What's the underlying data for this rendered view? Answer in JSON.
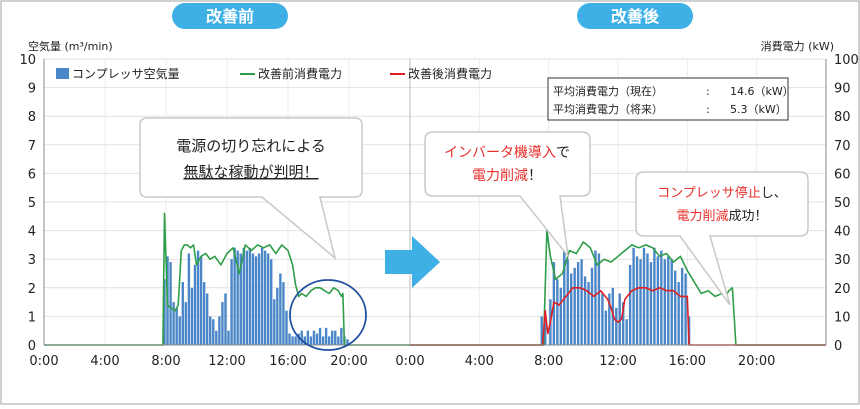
{
  "chart_data": {
    "type": "bar",
    "phase_labels": [
      "改善前",
      "改善後"
    ],
    "y_left_label": "空気量 (m³/min)",
    "y_right_label": "消費電力 (kW)",
    "y_left_range": [
      0,
      10
    ],
    "y_right_range": [
      0,
      100
    ],
    "y_left_ticks": [
      "0",
      "1",
      "2",
      "3",
      "4",
      "5",
      "6",
      "7",
      "8",
      "9",
      "10"
    ],
    "y_right_ticks": [
      "0",
      "10",
      "20",
      "30",
      "40",
      "50",
      "60",
      "70",
      "80",
      "90",
      "100"
    ],
    "x_tick_labels": [
      "0:00",
      "4:00",
      "8:00",
      "12:00",
      "16:00",
      "20:00",
      "0:00",
      "4:00",
      "8:00",
      "12:00",
      "16:00",
      "20:00"
    ],
    "legend": [
      {
        "name": "コンプレッサ空気量",
        "color": "#4a86c8",
        "kind": "bar"
      },
      {
        "name": "改善前消費電力",
        "color": "#2e9e48",
        "kind": "line"
      },
      {
        "name": "改善後消費電力",
        "color": "#e02020",
        "kind": "line"
      }
    ],
    "info_box": {
      "row1_label": "平均消費電力（現在）",
      "row1_sep": ":",
      "row1_value": "14.6（kW）",
      "row2_label": "平均消費電力（将来）",
      "row2_sep": ":",
      "row2_value": "5.3（kW）"
    },
    "callouts": {
      "before_line1": "電源の切り忘れによる",
      "before_line2_a": "無駄な稼動",
      "before_line2_b": "が",
      "before_line2_c": "判明",
      "before_line2_d": "！",
      "after1_line1_a": "インバータ機導入",
      "after1_line1_b": "で",
      "after1_line2_a": "電力削減",
      "after1_line2_b": "！",
      "after2_line1_a": "コンプレッサ停止",
      "after2_line1_b": "し、",
      "after2_line2_a": "電力削減",
      "after2_line2_b": "成功！"
    },
    "colors": {
      "bar": "#4a86c8",
      "before_line": "#2e9e48",
      "after_line": "#e02020",
      "phase_tab": "#3fb0e6",
      "arrow": "#3fb0e6",
      "circle": "#1f4fa0",
      "callout_red": "#e8302c"
    },
    "before": {
      "air_hours": [
        7.9,
        8.1,
        8.3,
        8.5,
        8.7,
        8.9,
        9.1,
        9.3,
        9.5,
        9.7,
        9.9,
        10.1,
        10.3,
        10.5,
        10.7,
        10.9,
        11.1,
        11.3,
        11.5,
        11.7,
        11.9,
        12.1,
        12.3,
        12.5,
        12.7,
        12.9,
        13.1,
        13.3,
        13.5,
        13.7,
        13.9,
        14.1,
        14.3,
        14.5,
        14.7,
        14.9,
        15.1,
        15.3,
        15.5,
        15.7,
        15.9,
        16.1,
        16.3,
        16.5,
        16.7,
        16.9,
        17.1,
        17.3,
        17.5,
        17.7,
        17.9,
        18.1,
        18.3,
        18.5,
        18.7,
        18.9,
        19.1,
        19.3,
        19.5,
        19.7,
        19.9
      ],
      "air_values": [
        2.3,
        3.1,
        2.9,
        1.5,
        1.3,
        1.0,
        2.2,
        1.5,
        3.2,
        2.0,
        2.8,
        3.3,
        3.1,
        2.2,
        1.8,
        1.0,
        0.9,
        0.5,
        1.0,
        1.5,
        1.8,
        0.5,
        3.0,
        3.4,
        3.3,
        3.2,
        3.4,
        3.3,
        3.4,
        3.2,
        3.1,
        3.2,
        3.4,
        3.3,
        3.2,
        3.0,
        1.6,
        2.0,
        2.5,
        2.2,
        1.2,
        0.4,
        0.3,
        0.3,
        0.4,
        0.5,
        0.3,
        0.5,
        0.3,
        0.5,
        0.4,
        0.6,
        0.3,
        0.6,
        0.3,
        0.5,
        0.5,
        0.3,
        0.6,
        0.3,
        0.2
      ],
      "power_hours": [
        0,
        7.8,
        7.9,
        8.0,
        8.1,
        8.3,
        8.6,
        8.8,
        9.0,
        9.2,
        9.4,
        9.6,
        9.8,
        10.0,
        10.3,
        10.6,
        10.9,
        11.2,
        11.6,
        12.0,
        12.4,
        12.8,
        13.2,
        13.6,
        14.0,
        14.4,
        14.8,
        15.2,
        15.6,
        16.0,
        16.3,
        16.5,
        16.7,
        16.9,
        17.2,
        17.5,
        17.8,
        18.1,
        18.4,
        18.7,
        19.0,
        19.3,
        19.5,
        19.6,
        19.7,
        20.0,
        24.0
      ],
      "power_values": [
        0,
        0,
        46,
        30,
        14,
        13,
        12,
        14,
        33,
        35,
        35,
        34,
        35,
        28,
        31,
        32,
        30,
        31,
        28,
        32,
        34,
        25,
        35,
        33,
        35,
        34,
        35,
        32,
        35,
        33,
        28,
        21,
        17,
        18,
        17,
        19,
        20,
        20,
        19,
        18,
        20,
        19,
        17,
        18,
        0,
        0,
        0
      ]
    },
    "after": {
      "air_hours": [
        7.6,
        7.8,
        8.1,
        8.3,
        8.5,
        8.7,
        8.9,
        9.1,
        9.3,
        9.5,
        9.7,
        9.9,
        10.1,
        10.3,
        10.5,
        10.7,
        10.9,
        11.1,
        11.3,
        11.5,
        11.7,
        11.9,
        12.1,
        12.3,
        12.5,
        12.7,
        12.9,
        13.1,
        13.3,
        13.5,
        13.7,
        13.9,
        14.1,
        14.3,
        14.5,
        14.7,
        14.9,
        15.1,
        15.3,
        15.5,
        15.7,
        15.9,
        16.1
      ],
      "air_values": [
        1.0,
        0.9,
        1.6,
        2.9,
        2.3,
        2.0,
        3.4,
        3.0,
        2.5,
        2.7,
        2.9,
        3.0,
        2.4,
        2.2,
        2.7,
        3.3,
        3.2,
        1.8,
        1.2,
        1.8,
        2.0,
        1.3,
        1.8,
        1.5,
        0.9,
        2.8,
        3.4,
        3.1,
        3.0,
        3.4,
        3.2,
        2.9,
        3.4,
        3.1,
        3.3,
        3.0,
        3.1,
        3.0,
        2.6,
        2.2,
        2.7,
        2.5,
        1.0
      ],
      "green_hours": [
        0,
        7.7,
        7.9,
        8.1,
        8.4,
        8.8,
        9.2,
        9.6,
        10.0,
        10.4,
        10.8,
        11.2,
        11.6,
        12.0,
        12.4,
        12.8,
        13.2,
        13.6,
        14.0,
        14.4,
        14.8,
        15.2,
        15.6,
        16.0,
        16.4,
        16.8,
        17.2,
        17.6,
        18.0,
        18.2,
        18.4,
        18.6,
        18.8,
        24.0
      ],
      "green_values": [
        0,
        0,
        40,
        31,
        23,
        25,
        33,
        32,
        36,
        34,
        28,
        30,
        29,
        31,
        33,
        35,
        34,
        35,
        34,
        31,
        32,
        29,
        31,
        26,
        22,
        18,
        19,
        17,
        18,
        17,
        19,
        20,
        0,
        0
      ],
      "red_hours": [
        0,
        7.65,
        7.8,
        7.95,
        8.1,
        8.3,
        8.6,
        9.0,
        9.4,
        9.8,
        10.2,
        10.6,
        11.0,
        11.4,
        11.6,
        11.8,
        12.0,
        12.2,
        12.4,
        12.8,
        13.2,
        13.6,
        14.0,
        14.4,
        14.8,
        15.2,
        15.6,
        16.0,
        16.1,
        16.3,
        24.0
      ],
      "red_values": [
        0,
        0,
        12,
        4,
        8,
        15,
        14,
        17,
        20,
        20,
        19,
        17,
        19,
        16,
        13,
        9,
        8,
        9,
        16,
        19,
        20,
        20,
        19,
        20,
        19,
        19,
        17,
        17,
        0,
        0,
        0
      ]
    }
  }
}
